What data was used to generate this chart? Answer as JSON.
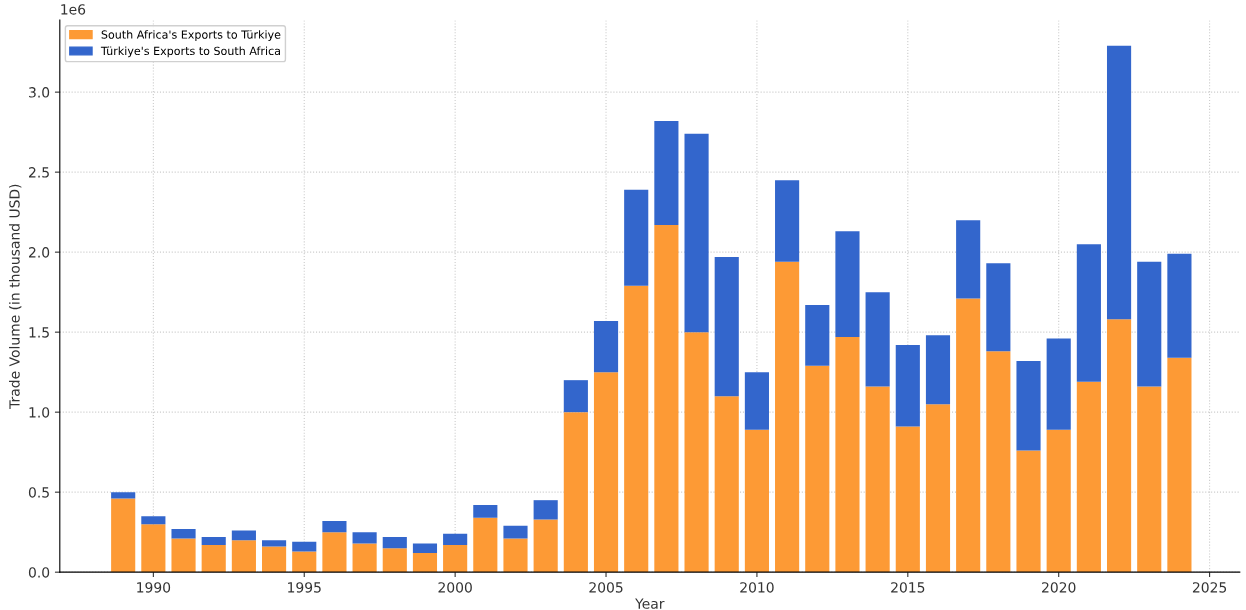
{
  "chart_data": {
    "type": "bar",
    "stacked": true,
    "xlabel": "Year",
    "ylabel": "Trade Volume (in thousand USD)",
    "annotations": [
      "1e6"
    ],
    "x": [
      1989,
      1990,
      1991,
      1992,
      1993,
      1994,
      1995,
      1996,
      1997,
      1998,
      1999,
      2000,
      2001,
      2002,
      2003,
      2004,
      2005,
      2006,
      2007,
      2008,
      2009,
      2010,
      2011,
      2012,
      2013,
      2014,
      2015,
      2016,
      2017,
      2018,
      2019,
      2020,
      2021,
      2022,
      2023,
      2024
    ],
    "series": [
      {
        "name": "South Africa's Exports to Türkiye",
        "color": "#fd9a35",
        "values": [
          0.46,
          0.3,
          0.21,
          0.17,
          0.2,
          0.16,
          0.13,
          0.25,
          0.18,
          0.15,
          0.12,
          0.17,
          0.34,
          0.21,
          0.33,
          1.0,
          1.25,
          1.79,
          2.17,
          1.5,
          1.1,
          0.89,
          1.94,
          1.29,
          1.47,
          1.16,
          0.91,
          1.05,
          1.71,
          1.38,
          0.76,
          0.89,
          1.19,
          1.58,
          1.16,
          1.34
        ]
      },
      {
        "name": "Türkiye's Exports to South Africa",
        "color": "#3366cc",
        "values": [
          0.04,
          0.05,
          0.06,
          0.05,
          0.06,
          0.04,
          0.06,
          0.07,
          0.07,
          0.07,
          0.06,
          0.07,
          0.08,
          0.08,
          0.12,
          0.2,
          0.32,
          0.6,
          0.65,
          1.24,
          0.87,
          0.36,
          0.51,
          0.38,
          0.66,
          0.59,
          0.51,
          0.43,
          0.49,
          0.55,
          0.56,
          0.57,
          0.86,
          1.71,
          0.78,
          0.65
        ]
      }
    ],
    "xlim": [
      1986.9,
      2026.0
    ],
    "xticks": [
      1990,
      1995,
      2000,
      2005,
      2010,
      2015,
      2020,
      2025
    ],
    "ylim": [
      0,
      3.45
    ],
    "yticks": [
      {
        "value": 0,
        "label": "0.0"
      },
      0.5,
      {
        "value": 1,
        "label": "1.0"
      },
      1.5,
      {
        "value": 2,
        "label": "2.0"
      },
      2.5,
      {
        "value": 3,
        "label": "3.0"
      }
    ],
    "grid": true,
    "legend": "top left"
  }
}
